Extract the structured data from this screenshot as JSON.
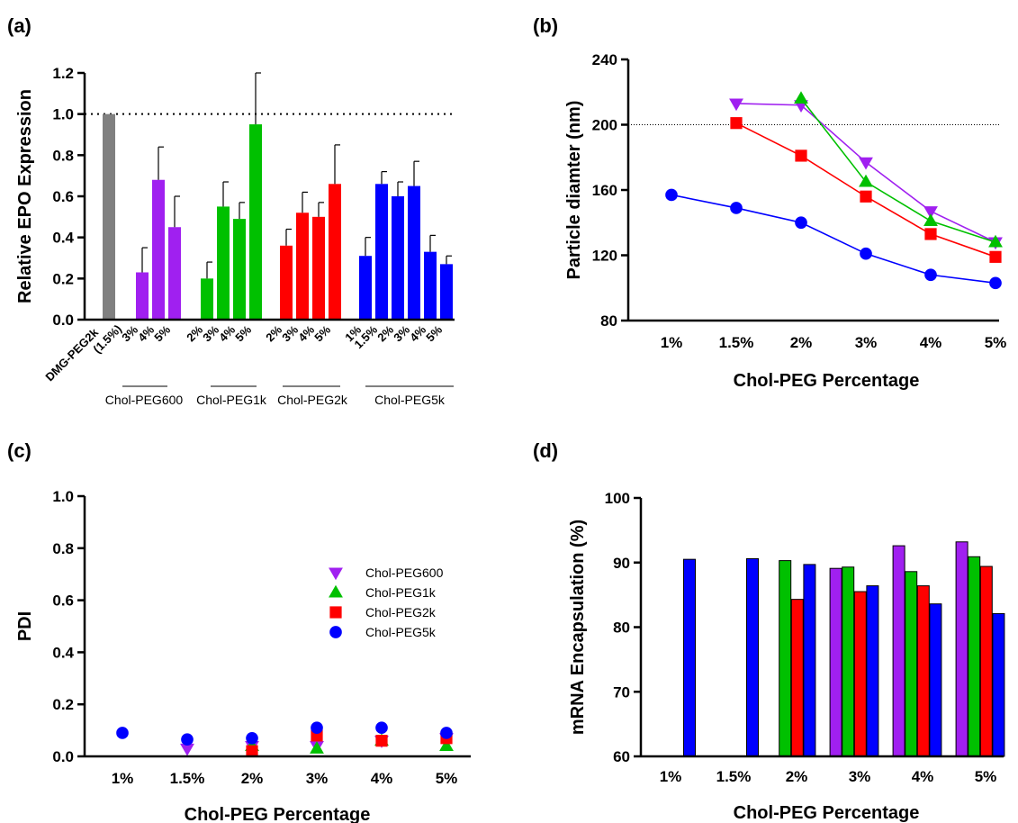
{
  "panels": {
    "a": "(a)",
    "b": "(b)",
    "c": "(c)",
    "d": "(d)"
  },
  "chart_data": [
    {
      "id": "a",
      "type": "bar",
      "xlabel": "",
      "ylabel": "Relative EPO Expression",
      "ylim": [
        0,
        1.2
      ],
      "yticks": [
        "0.0",
        "0.2",
        "0.4",
        "0.6",
        "0.8",
        "1.0",
        "1.2"
      ],
      "reference_line": 1.0,
      "bars": [
        {
          "label": "DMG-PEG2k (1.5%)",
          "group": "",
          "value": 1.0,
          "error": 0.0,
          "color": "#808080"
        },
        {
          "label": "3%",
          "group": "Chol-PEG600",
          "value": 0.23,
          "error": 0.12,
          "color": "#a020f0"
        },
        {
          "label": "4%",
          "group": "Chol-PEG600",
          "value": 0.68,
          "error": 0.16,
          "color": "#a020f0"
        },
        {
          "label": "5%",
          "group": "Chol-PEG600",
          "value": 0.45,
          "error": 0.15,
          "color": "#a020f0"
        },
        {
          "label": "2%",
          "group": "Chol-PEG1k",
          "value": 0.2,
          "error": 0.08,
          "color": "#00c000"
        },
        {
          "label": "3%",
          "group": "Chol-PEG1k",
          "value": 0.55,
          "error": 0.12,
          "color": "#00c000"
        },
        {
          "label": "4%",
          "group": "Chol-PEG1k",
          "value": 0.49,
          "error": 0.08,
          "color": "#00c000"
        },
        {
          "label": "5%",
          "group": "Chol-PEG1k",
          "value": 0.95,
          "error": 0.25,
          "color": "#00c000"
        },
        {
          "label": "2%",
          "group": "Chol-PEG2k",
          "value": 0.36,
          "error": 0.08,
          "color": "#ff0000"
        },
        {
          "label": "3%",
          "group": "Chol-PEG2k",
          "value": 0.52,
          "error": 0.1,
          "color": "#ff0000"
        },
        {
          "label": "4%",
          "group": "Chol-PEG2k",
          "value": 0.5,
          "error": 0.07,
          "color": "#ff0000"
        },
        {
          "label": "5%",
          "group": "Chol-PEG2k",
          "value": 0.66,
          "error": 0.19,
          "color": "#ff0000"
        },
        {
          "label": "1%",
          "group": "Chol-PEG5k",
          "value": 0.31,
          "error": 0.09,
          "color": "#0000ff"
        },
        {
          "label": "1.5%",
          "group": "Chol-PEG5k",
          "value": 0.66,
          "error": 0.06,
          "color": "#0000ff"
        },
        {
          "label": "2%",
          "group": "Chol-PEG5k",
          "value": 0.6,
          "error": 0.07,
          "color": "#0000ff"
        },
        {
          "label": "3%",
          "group": "Chol-PEG5k",
          "value": 0.65,
          "error": 0.12,
          "color": "#0000ff"
        },
        {
          "label": "4%",
          "group": "Chol-PEG5k",
          "value": 0.33,
          "error": 0.08,
          "color": "#0000ff"
        },
        {
          "label": "5%",
          "group": "Chol-PEG5k",
          "value": 0.27,
          "error": 0.04,
          "color": "#0000ff"
        }
      ],
      "first_label": {
        "line1": "DMG-PEG2k",
        "line2": "(1.5%)"
      },
      "groups": [
        "Chol-PEG600",
        "Chol-PEG1k",
        "Chol-PEG2k",
        "Chol-PEG5k"
      ]
    },
    {
      "id": "b",
      "type": "line",
      "xlabel": "Chol-PEG Percentage",
      "ylabel": "Particle diamter (nm)",
      "ylim": [
        80,
        240
      ],
      "yticks": [
        "80",
        "120",
        "160",
        "200",
        "240"
      ],
      "reference_line": 200,
      "categories": [
        "1%",
        "1.5%",
        "2%",
        "3%",
        "4%",
        "5%"
      ],
      "series": [
        {
          "name": "Chol-PEG600",
          "color": "#a020f0",
          "marker": "triangle-down",
          "values": [
            null,
            213,
            212,
            177,
            147,
            128
          ]
        },
        {
          "name": "Chol-PEG1k",
          "color": "#00c000",
          "marker": "triangle-up",
          "values": [
            null,
            null,
            216,
            165,
            141,
            128
          ]
        },
        {
          "name": "Chol-PEG2k",
          "color": "#ff0000",
          "marker": "square",
          "values": [
            null,
            201,
            181,
            156,
            133,
            119
          ]
        },
        {
          "name": "Chol-PEG5k",
          "color": "#0000ff",
          "marker": "circle",
          "values": [
            157,
            149,
            140,
            121,
            108,
            103
          ]
        }
      ]
    },
    {
      "id": "c",
      "type": "scatter",
      "xlabel": "Chol-PEG Percentage",
      "ylabel": "PDI",
      "ylim": [
        0,
        1.0
      ],
      "yticks": [
        "0.0",
        "0.2",
        "0.4",
        "0.6",
        "0.8",
        "1.0"
      ],
      "categories": [
        "1%",
        "1.5%",
        "2%",
        "3%",
        "4%",
        "5%"
      ],
      "legend_position": "center-right",
      "series": [
        {
          "name": "Chol-PEG600",
          "color": "#a020f0",
          "marker": "triangle-down",
          "values": [
            null,
            0.03,
            0.04,
            0.04,
            0.06,
            0.07
          ]
        },
        {
          "name": "Chol-PEG1k",
          "color": "#00c000",
          "marker": "triangle-up",
          "values": [
            null,
            null,
            0.04,
            0.03,
            0.06,
            0.04
          ]
        },
        {
          "name": "Chol-PEG2k",
          "color": "#ff0000",
          "marker": "square",
          "values": [
            null,
            null,
            0.02,
            0.08,
            0.06,
            0.07
          ]
        },
        {
          "name": "Chol-PEG5k",
          "color": "#0000ff",
          "marker": "circle",
          "values": [
            0.09,
            0.065,
            0.07,
            0.11,
            0.11,
            0.09
          ]
        }
      ]
    },
    {
      "id": "d",
      "type": "bar",
      "xlabel": "Chol-PEG Percentage",
      "ylabel": "mRNA Encapsulation (%)",
      "ylim": [
        60,
        100
      ],
      "yticks": [
        "60",
        "70",
        "80",
        "90",
        "100"
      ],
      "categories": [
        "1%",
        "1.5%",
        "2%",
        "3%",
        "4%",
        "5%"
      ],
      "series": [
        {
          "name": "Chol-PEG600",
          "color": "#a020f0",
          "values": [
            null,
            null,
            null,
            89.1,
            92.6,
            93.2
          ]
        },
        {
          "name": "Chol-PEG1k",
          "color": "#00c000",
          "values": [
            null,
            null,
            90.3,
            89.3,
            88.6,
            90.9
          ]
        },
        {
          "name": "Chol-PEG2k",
          "color": "#ff0000",
          "values": [
            null,
            null,
            84.3,
            85.5,
            86.4,
            89.4
          ]
        },
        {
          "name": "Chol-PEG5k",
          "color": "#0000ff",
          "values": [
            90.5,
            90.6,
            89.7,
            86.4,
            83.6,
            82.1
          ]
        }
      ]
    }
  ]
}
